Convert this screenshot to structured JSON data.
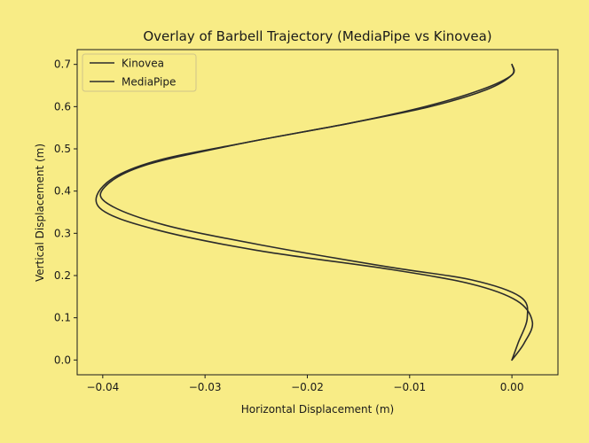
{
  "chart_data": {
    "type": "line",
    "title": "Overlay of Barbell Trajectory (MediaPipe vs Kinovea)",
    "xlabel": "Horizontal Displacement (m)",
    "ylabel": "Vertical Displacement (m)",
    "xlim": [
      -0.0425,
      0.0045
    ],
    "ylim": [
      -0.035,
      0.735
    ],
    "xticks": [
      -0.04,
      -0.03,
      -0.02,
      -0.01,
      0.0
    ],
    "xtick_labels": [
      "−0.04",
      "−0.03",
      "−0.02",
      "−0.01",
      "0.00"
    ],
    "yticks": [
      0.0,
      0.1,
      0.2,
      0.3,
      0.4,
      0.5,
      0.6,
      0.7
    ],
    "ytick_labels": [
      "0.0",
      "0.1",
      "0.2",
      "0.3",
      "0.4",
      "0.5",
      "0.6",
      "0.7"
    ],
    "grid": false,
    "legend_position": "upper-left",
    "series": [
      {
        "name": "Kinovea",
        "color": "#2b2b2b",
        "x": [
          0.0,
          0.0006,
          0.0015,
          0.0008,
          -0.004,
          -0.012,
          -0.024,
          -0.034,
          -0.0395,
          -0.0398,
          -0.036,
          -0.027,
          -0.016,
          -0.008,
          -0.0025,
          0.0,
          0.0
        ],
        "y": [
          0.0,
          0.04,
          0.1,
          0.15,
          0.19,
          0.22,
          0.27,
          0.32,
          0.37,
          0.41,
          0.46,
          0.51,
          0.56,
          0.6,
          0.64,
          0.675,
          0.7
        ]
      },
      {
        "name": "MediaPipe",
        "color": "#2b2b2b",
        "x": [
          0.0,
          0.0012,
          0.002,
          0.0005,
          -0.004,
          -0.012,
          -0.025,
          -0.035,
          -0.0403,
          -0.0396,
          -0.035,
          -0.026,
          -0.016,
          -0.0085,
          -0.003,
          0.0,
          0.0
        ],
        "y": [
          0.0,
          0.04,
          0.09,
          0.14,
          0.18,
          0.215,
          0.26,
          0.31,
          0.36,
          0.42,
          0.47,
          0.515,
          0.56,
          0.6,
          0.64,
          0.675,
          0.7
        ]
      }
    ]
  }
}
